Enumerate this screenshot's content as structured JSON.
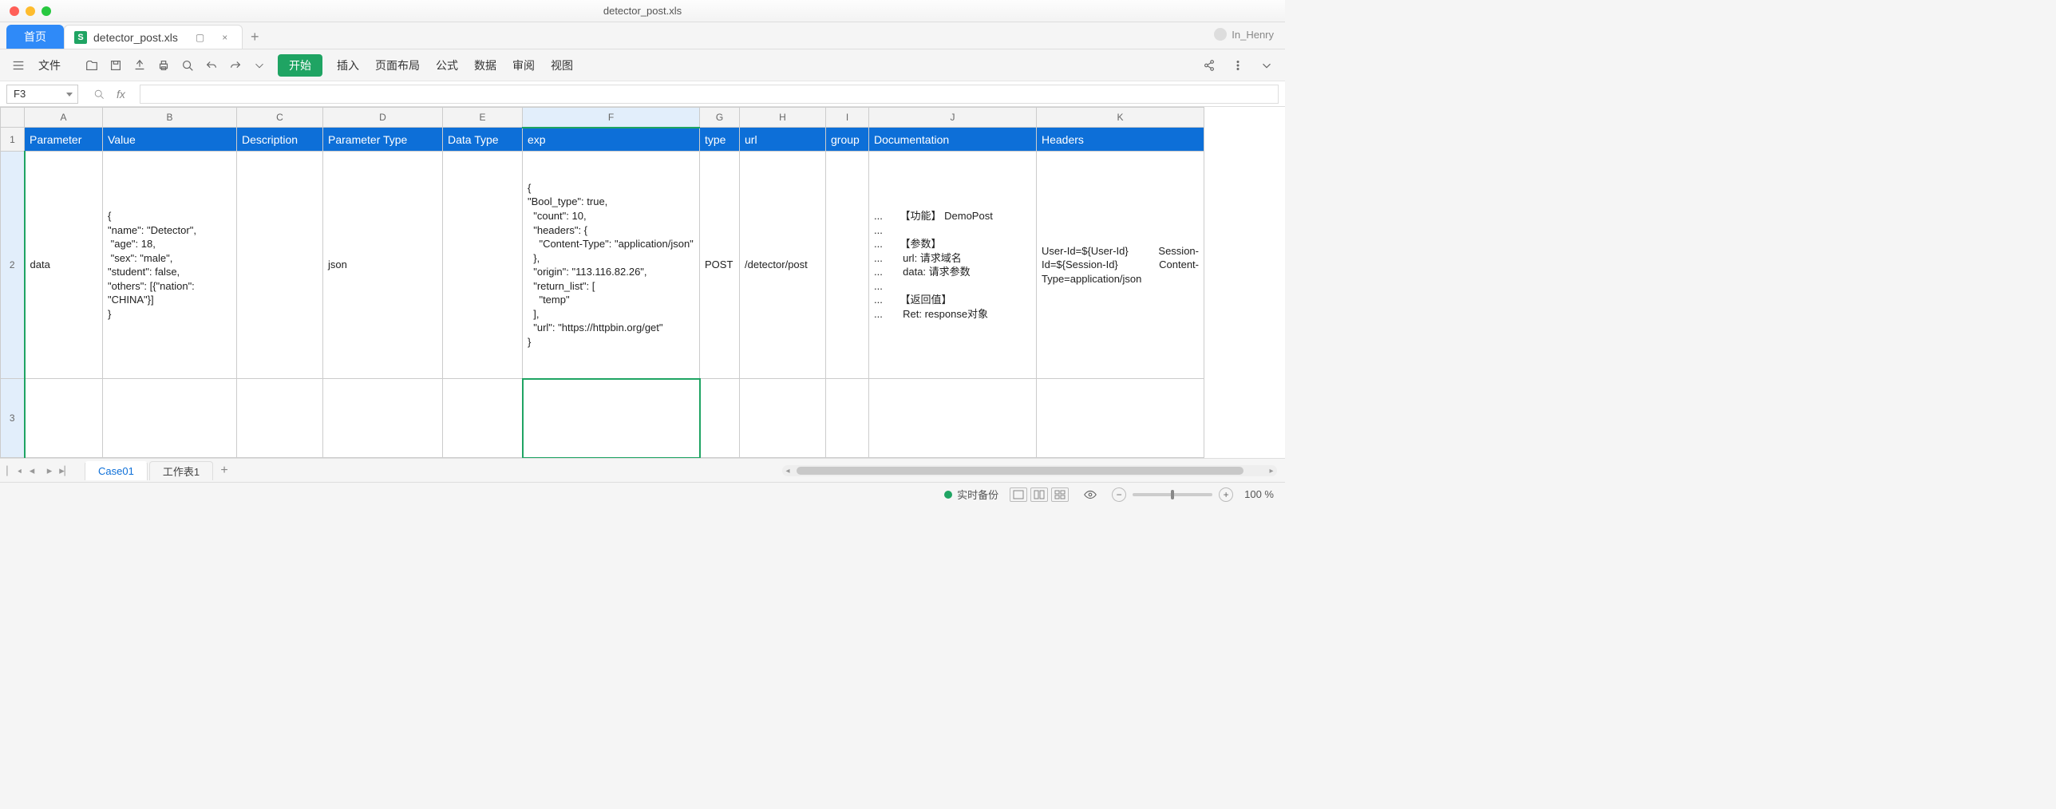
{
  "window": {
    "title": "detector_post.xls"
  },
  "user": {
    "name": "In_Henry"
  },
  "doctabs": {
    "home": "首页",
    "file": {
      "icon": "S",
      "name": "detector_post.xls"
    }
  },
  "menus": {
    "file": "文件",
    "start_pill": "开始",
    "insert": "插入",
    "pagelayout": "页面布局",
    "formula": "公式",
    "data": "数据",
    "review": "审阅",
    "view": "视图"
  },
  "formula_bar": {
    "namebox": "F3",
    "fx": "fx"
  },
  "columns": {
    "letters": [
      "A",
      "B",
      "C",
      "D",
      "E",
      "F",
      "G",
      "H",
      "I",
      "J",
      "K"
    ],
    "widths": [
      98,
      168,
      108,
      150,
      100,
      222,
      50,
      108,
      54,
      210,
      210
    ],
    "selected_index": 5
  },
  "header_row": [
    "Parameter",
    "Value",
    "Description",
    "Parameter Type",
    "Data Type",
    "exp",
    "type",
    "url",
    "group",
    "Documentation",
    "Headers"
  ],
  "header_bg": "#0d6fd8",
  "data_row": {
    "A": "data",
    "B": "{\n\"name\": \"Detector\",\n \"age\": 18,\n \"sex\": \"male\",\n\"student\": false,\n\"others\": [{\"nation\": \"CHINA\"}]\n}",
    "C": "",
    "D": "json",
    "E": "",
    "F": "{\n\"Bool_type\": true,\n  \"count\": 10,\n  \"headers\": {\n    \"Content-Type\": \"application/json\"\n  },\n  \"origin\": \"113.116.82.26\",\n  \"return_list\": [\n    \"temp\"\n  ],\n  \"url\": \"https://httpbin.org/get\"\n}",
    "G": "POST",
    "H": "/detector/post",
    "I": "",
    "J": "...      【功能】 DemoPost\n...\n...      【参数】\n...       url: 请求域名\n...       data: 请求参数\n...\n...      【返回值】\n...       Ret: response对象",
    "K": "User-Id=${User-Id}    Session-Id=${Session-Id}    Content-Type=application/json"
  },
  "row_heights": {
    "r1": 26,
    "r2": 248,
    "r3": 86
  },
  "selected_cell": "F3",
  "sheet_tabs": {
    "active": "Case01",
    "other": "工作表1"
  },
  "statusbar": {
    "backup": "实时备份",
    "zoom": "100 %"
  }
}
